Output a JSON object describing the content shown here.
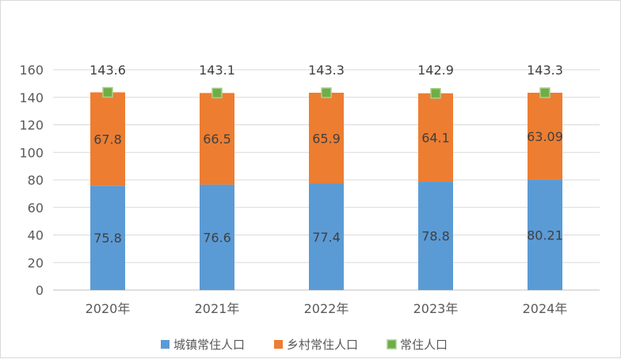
{
  "chart_data": {
    "type": "bar",
    "stacked": true,
    "categories": [
      "2020年",
      "2021年",
      "2022年",
      "2023年",
      "2024年"
    ],
    "series": [
      {
        "name": "城镇常住人口",
        "values": [
          75.8,
          76.6,
          77.4,
          78.8,
          80.21
        ],
        "color": "#5b9bd5",
        "kind": "bar"
      },
      {
        "name": "乡村常住人口",
        "values": [
          67.8,
          66.5,
          65.9,
          64.1,
          63.09
        ],
        "color": "#ed7d31",
        "kind": "bar"
      },
      {
        "name": "常住人口",
        "values": [
          143.6,
          143.1,
          143.3,
          142.9,
          143.3
        ],
        "color": "#70ad47",
        "kind": "marker"
      }
    ],
    "data_labels": {
      "urban": [
        "75.8",
        "76.6",
        "77.4",
        "78.8",
        "80.21"
      ],
      "rural": [
        "67.8",
        "66.5",
        "65.9",
        "64.1",
        "63.09"
      ],
      "total": [
        "143.6",
        "143.1",
        "143.3",
        "142.9",
        "143.3"
      ]
    },
    "yticks": [
      "0",
      "20",
      "40",
      "60",
      "80",
      "100",
      "120",
      "140",
      "160"
    ],
    "ylim": [
      0,
      160
    ],
    "grid": true,
    "legend_position": "bottom"
  }
}
